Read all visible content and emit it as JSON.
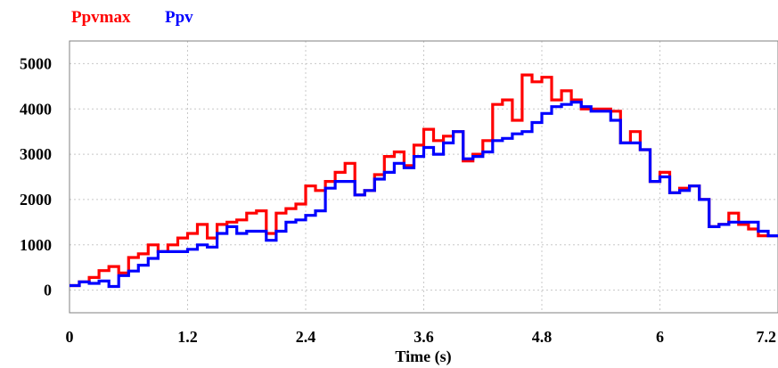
{
  "chart_data": {
    "type": "line",
    "step": true,
    "title": "",
    "xlabel": "Time (s)",
    "ylabel": "",
    "xlim": [
      0,
      7.2
    ],
    "ylim": [
      -500,
      5500
    ],
    "x_ticks": [
      0,
      1.2,
      2.4,
      3.6,
      4.8,
      6,
      7.2
    ],
    "x_tick_labels": [
      "0",
      "1.2",
      "2.4",
      "3.6",
      "4.8",
      "6",
      "7.2"
    ],
    "y_ticks": [
      0,
      1000,
      2000,
      3000,
      4000,
      5000
    ],
    "y_tick_labels": [
      "0",
      "1000",
      "2000",
      "3000",
      "4000",
      "5000"
    ],
    "grid": true,
    "legend_position": "top-left",
    "x": [
      0,
      0.1,
      0.2,
      0.3,
      0.4,
      0.5,
      0.6,
      0.7,
      0.8,
      0.9,
      1.0,
      1.1,
      1.2,
      1.3,
      1.4,
      1.5,
      1.6,
      1.7,
      1.8,
      1.9,
      2.0,
      2.1,
      2.2,
      2.3,
      2.4,
      2.5,
      2.6,
      2.7,
      2.8,
      2.9,
      3.0,
      3.1,
      3.2,
      3.3,
      3.4,
      3.5,
      3.6,
      3.7,
      3.8,
      3.9,
      4.0,
      4.1,
      4.2,
      4.3,
      4.4,
      4.5,
      4.6,
      4.7,
      4.8,
      4.9,
      5.0,
      5.1,
      5.2,
      5.3,
      5.4,
      5.5,
      5.6,
      5.7,
      5.8,
      5.9,
      6.0,
      6.1,
      6.2,
      6.3,
      6.4,
      6.5,
      6.6,
      6.7,
      6.8,
      6.9,
      7.0,
      7.1
    ],
    "series": [
      {
        "name": "Ppvmax",
        "color": "#ff0000",
        "values": [
          100,
          180,
          280,
          430,
          520,
          380,
          720,
          800,
          1000,
          850,
          1000,
          1150,
          1250,
          1450,
          1150,
          1450,
          1500,
          1550,
          1700,
          1750,
          1250,
          1700,
          1800,
          1900,
          2300,
          2200,
          2400,
          2600,
          2800,
          2100,
          2200,
          2550,
          2950,
          3050,
          2750,
          3200,
          3550,
          3300,
          3400,
          3500,
          2850,
          3000,
          3300,
          4100,
          4200,
          3750,
          4750,
          4600,
          4700,
          4200,
          4400,
          4200,
          4000,
          4000,
          4000,
          3950,
          3250,
          3500,
          3100,
          2400,
          2600,
          2150,
          2250,
          2300,
          2000,
          1400,
          1450,
          1700,
          1450,
          1350,
          1200,
          1200
        ]
      },
      {
        "name": "Ppv",
        "color": "#0000ff",
        "values": [
          100,
          180,
          150,
          200,
          80,
          320,
          420,
          550,
          700,
          850,
          850,
          850,
          900,
          1000,
          950,
          1250,
          1400,
          1250,
          1300,
          1300,
          1100,
          1300,
          1500,
          1550,
          1650,
          1750,
          2250,
          2400,
          2400,
          2100,
          2200,
          2450,
          2600,
          2800,
          2700,
          2950,
          3150,
          3000,
          3250,
          3500,
          2900,
          2950,
          3050,
          3300,
          3350,
          3450,
          3500,
          3700,
          3900,
          4050,
          4100,
          4150,
          4050,
          3950,
          3950,
          3750,
          3250,
          3250,
          3100,
          2400,
          2500,
          2150,
          2200,
          2300,
          2000,
          1400,
          1450,
          1500,
          1500,
          1500,
          1300,
          1200
        ]
      }
    ]
  }
}
